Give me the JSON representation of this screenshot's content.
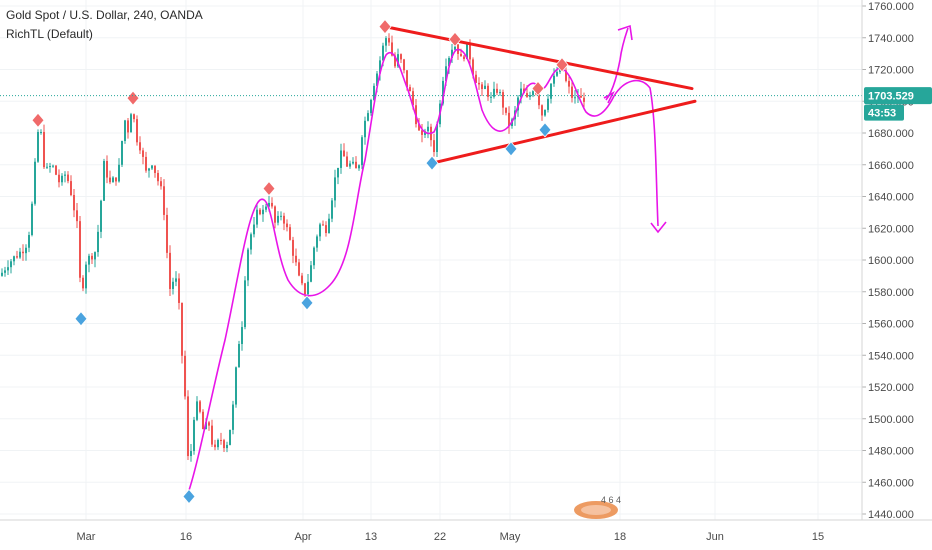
{
  "header": {
    "symbol_line": "Gold Spot / U.S. Dollar, 240, OANDA",
    "indicator_line": "RichTL (Default)"
  },
  "price_badge": {
    "price": "1703.529",
    "countdown": "43:53"
  },
  "colors": {
    "up": "#26a69a",
    "down": "#ef5350",
    "pivot_high": "#f06a6a",
    "pivot_low": "#4aa3df",
    "trendline": "#ee1c1c",
    "drawing": "#e815e8",
    "current_price": "#26a69a"
  },
  "watermark": {
    "text": "4 6 4"
  },
  "chart_data": {
    "type": "candlestick",
    "y_range": [
      1435,
      1765
    ],
    "y_ticks": [
      "1440.000",
      "1460.000",
      "1480.000",
      "1500.000",
      "1520.000",
      "1540.000",
      "1560.000",
      "1580.000",
      "1600.000",
      "1620.000",
      "1640.000",
      "1660.000",
      "1680.000",
      "1700.000",
      "1720.000",
      "1740.000",
      "1760.000"
    ],
    "x_ticks": [
      "Mar",
      "16",
      "Apr",
      "13",
      "22",
      "May",
      "18",
      "Jun",
      "15"
    ],
    "current_price": 1703.529,
    "price_path": [
      [
        0,
        1590
      ],
      [
        8,
        1598
      ],
      [
        15,
        1602
      ],
      [
        22,
        1606
      ],
      [
        28,
        1612
      ],
      [
        33,
        1640
      ],
      [
        37,
        1678
      ],
      [
        40,
        1685
      ],
      [
        45,
        1655
      ],
      [
        52,
        1660
      ],
      [
        60,
        1648
      ],
      [
        66,
        1655
      ],
      [
        72,
        1640
      ],
      [
        78,
        1618
      ],
      [
        81,
        1572
      ],
      [
        85,
        1598
      ],
      [
        90,
        1602
      ],
      [
        96,
        1606
      ],
      [
        100,
        1630
      ],
      [
        104,
        1660
      ],
      [
        110,
        1648
      ],
      [
        116,
        1652
      ],
      [
        120,
        1660
      ],
      [
        124,
        1690
      ],
      [
        128,
        1682
      ],
      [
        132,
        1698
      ],
      [
        136,
        1678
      ],
      [
        140,
        1672
      ],
      [
        146,
        1655
      ],
      [
        152,
        1662
      ],
      [
        158,
        1650
      ],
      [
        163,
        1640
      ],
      [
        166,
        1612
      ],
      [
        170,
        1582
      ],
      [
        175,
        1590
      ],
      [
        178,
        1580
      ],
      [
        182,
        1540
      ],
      [
        186,
        1505
      ],
      [
        189,
        1460
      ],
      [
        193,
        1500
      ],
      [
        198,
        1510
      ],
      [
        204,
        1490
      ],
      [
        208,
        1500
      ],
      [
        214,
        1478
      ],
      [
        220,
        1488
      ],
      [
        226,
        1482
      ],
      [
        232,
        1500
      ],
      [
        238,
        1545
      ],
      [
        242,
        1560
      ],
      [
        246,
        1600
      ],
      [
        250,
        1615
      ],
      [
        254,
        1620
      ],
      [
        258,
        1632
      ],
      [
        264,
        1630
      ],
      [
        268,
        1640
      ],
      [
        272,
        1632
      ],
      [
        276,
        1620
      ],
      [
        280,
        1630
      ],
      [
        285,
        1624
      ],
      [
        290,
        1612
      ],
      [
        295,
        1600
      ],
      [
        300,
        1585
      ],
      [
        305,
        1580
      ],
      [
        310,
        1592
      ],
      [
        315,
        1612
      ],
      [
        320,
        1622
      ],
      [
        326,
        1620
      ],
      [
        330,
        1632
      ],
      [
        334,
        1648
      ],
      [
        338,
        1660
      ],
      [
        342,
        1668
      ],
      [
        347,
        1660
      ],
      [
        352,
        1660
      ],
      [
        358,
        1655
      ],
      [
        362,
        1680
      ],
      [
        366,
        1690
      ],
      [
        370,
        1700
      ],
      [
        374,
        1712
      ],
      [
        378,
        1720
      ],
      [
        382,
        1732
      ],
      [
        386,
        1740
      ],
      [
        390,
        1738
      ],
      [
        394,
        1720
      ],
      [
        398,
        1728
      ],
      [
        402,
        1724
      ],
      [
        406,
        1712
      ],
      [
        410,
        1705
      ],
      [
        414,
        1695
      ],
      [
        418,
        1682
      ],
      [
        422,
        1676
      ],
      [
        426,
        1685
      ],
      [
        430,
        1678
      ],
      [
        434,
        1670
      ],
      [
        438,
        1690
      ],
      [
        442,
        1712
      ],
      [
        446,
        1725
      ],
      [
        450,
        1730
      ],
      [
        454,
        1738
      ],
      [
        458,
        1732
      ],
      [
        462,
        1724
      ],
      [
        466,
        1735
      ],
      [
        470,
        1728
      ],
      [
        474,
        1716
      ],
      [
        478,
        1712
      ],
      [
        482,
        1705
      ],
      [
        486,
        1710
      ],
      [
        490,
        1700
      ],
      [
        494,
        1705
      ],
      [
        498,
        1708
      ],
      [
        502,
        1700
      ],
      [
        506,
        1690
      ],
      [
        510,
        1684
      ],
      [
        514,
        1690
      ],
      [
        518,
        1702
      ],
      [
        522,
        1708
      ],
      [
        526,
        1700
      ],
      [
        530,
        1704
      ],
      [
        534,
        1710
      ],
      [
        538,
        1702
      ],
      [
        542,
        1692
      ],
      [
        546,
        1698
      ],
      [
        550,
        1710
      ],
      [
        554,
        1714
      ],
      [
        558,
        1720
      ],
      [
        562,
        1722
      ],
      [
        566,
        1712
      ],
      [
        570,
        1706
      ],
      [
        574,
        1700
      ],
      [
        578,
        1704
      ],
      [
        582,
        1700
      ],
      [
        586,
        1704
      ]
    ],
    "pivot_highs": [
      {
        "x": 38,
        "price": 1688
      },
      {
        "x": 133,
        "price": 1702
      },
      {
        "x": 269,
        "price": 1645
      },
      {
        "x": 385,
        "price": 1747
      },
      {
        "x": 455,
        "price": 1739
      },
      {
        "x": 538,
        "price": 1708
      },
      {
        "x": 562,
        "price": 1723
      }
    ],
    "pivot_lows": [
      {
        "x": 81,
        "price": 1563
      },
      {
        "x": 189,
        "price": 1451
      },
      {
        "x": 307,
        "price": 1573
      },
      {
        "x": 432,
        "price": 1661
      },
      {
        "x": 511,
        "price": 1670
      },
      {
        "x": 545,
        "price": 1682
      }
    ],
    "trendlines": [
      {
        "name": "upper",
        "from": {
          "x": 385,
          "price": 1747
        },
        "to": {
          "x": 692,
          "price": 1708
        }
      },
      {
        "name": "lower",
        "from": {
          "x": 432,
          "price": 1661
        },
        "to": {
          "x": 695,
          "price": 1700
        }
      }
    ]
  }
}
